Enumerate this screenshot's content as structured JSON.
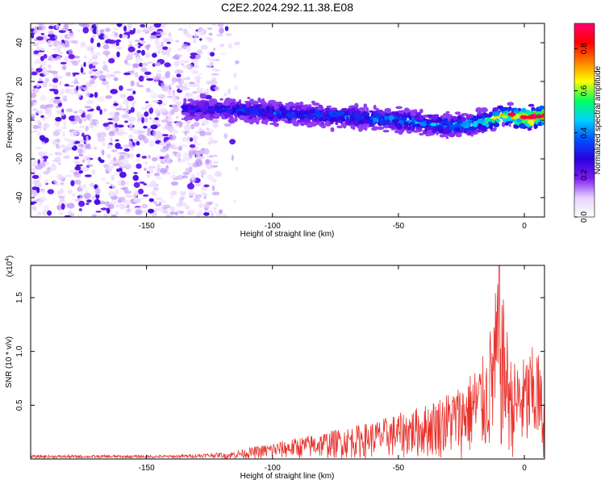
{
  "figure_title": "C2E2.2024.292.11.38.E08",
  "chart_data": [
    {
      "type": "heatmap",
      "xlabel": "Height of straight line (km)",
      "ylabel": "Frequency (Hz)",
      "xlim": [
        -196,
        8
      ],
      "ylim": [
        -50,
        50
      ],
      "xticks": [
        -150,
        -100,
        -50,
        0
      ],
      "yticks": [
        -40,
        -20,
        0,
        20,
        40
      ],
      "grid": false,
      "colorbar": {
        "label": "Normalized spectral amplitude",
        "range": [
          0,
          0.92
        ],
        "ticks": [
          "0.0",
          "0.2",
          "0.4",
          "0.6",
          "0.8"
        ],
        "colormap": [
          "#ffffff",
          "#e6d2ff",
          "#7b1cf0",
          "#2a00e0",
          "#0050ff",
          "#00d0ff",
          "#00ff60",
          "#ffff00",
          "#ff8000",
          "#ff0000",
          "#ff0070"
        ]
      },
      "noise_region": {
        "x_from": -196,
        "x_to": -122,
        "level": 0.1
      },
      "signal_band": {
        "x_from": -135,
        "x_to": 8,
        "half_width_hz": 5,
        "center_freq": [
          {
            "x": -135,
            "y": 6
          },
          {
            "x": -110,
            "y": 5
          },
          {
            "x": -90,
            "y": 3
          },
          {
            "x": -70,
            "y": 2
          },
          {
            "x": -50,
            "y": 0
          },
          {
            "x": -30,
            "y": -3
          },
          {
            "x": -15,
            "y": -1
          },
          {
            "x": -8,
            "y": 3
          },
          {
            "x": 0,
            "y": 1
          },
          {
            "x": 8,
            "y": 2
          }
        ],
        "amplitude": [
          {
            "x": -135,
            "v": 0.3
          },
          {
            "x": -110,
            "v": 0.35
          },
          {
            "x": -60,
            "v": 0.4
          },
          {
            "x": -20,
            "v": 0.45
          },
          {
            "x": -5,
            "v": 0.7
          },
          {
            "x": 3,
            "v": 0.9
          },
          {
            "x": 8,
            "v": 0.8
          }
        ]
      }
    },
    {
      "type": "line",
      "xlabel": "Height of straight line (km)",
      "ylabel": "SNR (10 * v/v)",
      "multiplier_label": "(x10",
      "multiplier_exp": "4",
      "xlim": [
        -196,
        8
      ],
      "ylim": [
        0,
        1.8
      ],
      "xticks": [
        -150,
        -100,
        -50,
        0
      ],
      "yticks": [
        "0.5",
        "1.0",
        "1.5"
      ],
      "grid": false,
      "series": [
        {
          "color": "#e8302a",
          "envelope": [
            {
              "x": -196,
              "y": 0.03
            },
            {
              "x": -140,
              "y": 0.03
            },
            {
              "x": -120,
              "y": 0.05
            },
            {
              "x": -100,
              "y": 0.15
            },
            {
              "x": -80,
              "y": 0.25
            },
            {
              "x": -60,
              "y": 0.35
            },
            {
              "x": -40,
              "y": 0.5
            },
            {
              "x": -25,
              "y": 0.7
            },
            {
              "x": -15,
              "y": 1.0
            },
            {
              "x": -10,
              "y": 1.8
            },
            {
              "x": -5,
              "y": 0.9
            },
            {
              "x": 0,
              "y": 0.95
            },
            {
              "x": 5,
              "y": 1.1
            },
            {
              "x": 8,
              "y": 0.6
            }
          ]
        }
      ]
    }
  ]
}
